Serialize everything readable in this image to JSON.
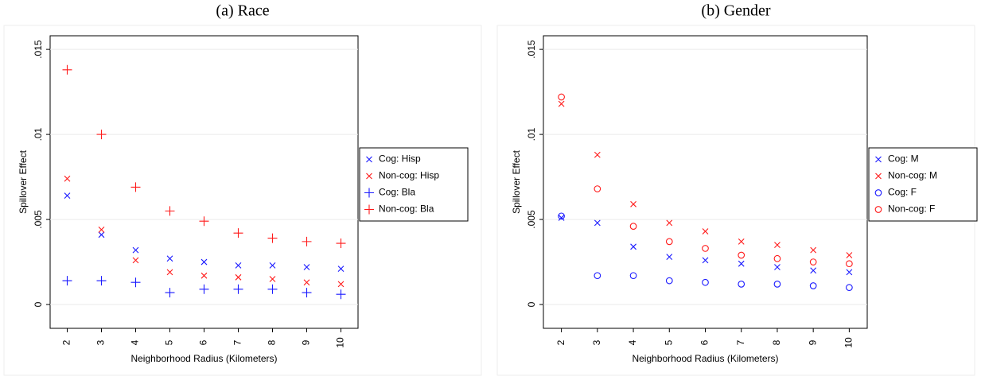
{
  "chart_data": [
    {
      "type": "scatter",
      "title": "(a) Race",
      "x_label": "Neighborhood Radius (Kilometers)",
      "y_label": "Spillover Effect",
      "x": [
        2,
        3,
        4,
        5,
        6,
        7,
        8,
        9,
        10
      ],
      "series": [
        {
          "name": "Cog: Hisp",
          "color": "#1a1aff",
          "marker": "x",
          "values": [
            0.0064,
            0.0041,
            0.0032,
            0.0027,
            0.0025,
            0.0023,
            0.0023,
            0.0022,
            0.0021
          ]
        },
        {
          "name": "Non-cog: Hisp",
          "color": "#ff1a1a",
          "marker": "x",
          "values": [
            0.0074,
            0.0044,
            0.0026,
            0.0019,
            0.0017,
            0.0016,
            0.0015,
            0.0013,
            0.0012
          ]
        },
        {
          "name": "Cog: Bla",
          "color": "#1a1aff",
          "marker": "+",
          "values": [
            0.0014,
            0.0014,
            0.0013,
            0.0007,
            0.0009,
            0.0009,
            0.0009,
            0.0007,
            0.0006
          ]
        },
        {
          "name": "Non-cog: Bla",
          "color": "#ff1a1a",
          "marker": "+",
          "values": [
            0.0138,
            0.01,
            0.0069,
            0.0055,
            0.0049,
            0.0042,
            0.0039,
            0.0037,
            0.0036
          ]
        }
      ],
      "xlim": [
        1.5,
        10.5
      ],
      "xticks": [
        2,
        3,
        4,
        5,
        6,
        7,
        8,
        9,
        10
      ],
      "ylim": [
        -0.0014,
        0.0158
      ],
      "yticks": [
        0,
        {
          "value": 0.005,
          "label": ".005"
        },
        {
          "value": 0.01,
          "label": ".01"
        },
        {
          "value": 0.015,
          "label": ".015"
        }
      ],
      "grid": true,
      "legend": "right"
    },
    {
      "type": "scatter",
      "title": "(b) Gender",
      "x_label": "Neighborhood Radius (Kilometers)",
      "y_label": "Spillover Effect",
      "x": [
        2,
        3,
        4,
        5,
        6,
        7,
        8,
        9,
        10
      ],
      "series": [
        {
          "name": "Cog: M",
          "color": "#1a1aff",
          "marker": "x",
          "values": [
            0.0051,
            0.0048,
            0.0034,
            0.0028,
            0.0026,
            0.0024,
            0.0022,
            0.002,
            0.0019
          ]
        },
        {
          "name": "Non-cog: M",
          "color": "#ff1a1a",
          "marker": "x",
          "values": [
            0.0118,
            0.0088,
            0.0059,
            0.0048,
            0.0043,
            0.0037,
            0.0035,
            0.0032,
            0.0029
          ]
        },
        {
          "name": "Cog: F",
          "color": "#1a1aff",
          "marker": "o",
          "values": [
            0.0052,
            0.0017,
            0.0017,
            0.0014,
            0.0013,
            0.0012,
            0.0012,
            0.0011,
            0.001
          ]
        },
        {
          "name": "Non-cog: F",
          "color": "#ff1a1a",
          "marker": "o",
          "values": [
            0.0122,
            0.0068,
            0.0046,
            0.0037,
            0.0033,
            0.0029,
            0.0027,
            0.0025,
            0.0024
          ]
        }
      ],
      "xlim": [
        1.5,
        10.5
      ],
      "xticks": [
        2,
        3,
        4,
        5,
        6,
        7,
        8,
        9,
        10
      ],
      "ylim": [
        -0.0014,
        0.0158
      ],
      "yticks": [
        0,
        {
          "value": 0.005,
          "label": ".005"
        },
        {
          "value": 0.01,
          "label": ".01"
        },
        {
          "value": 0.015,
          "label": ".015"
        }
      ],
      "grid": true,
      "legend": "right"
    }
  ]
}
